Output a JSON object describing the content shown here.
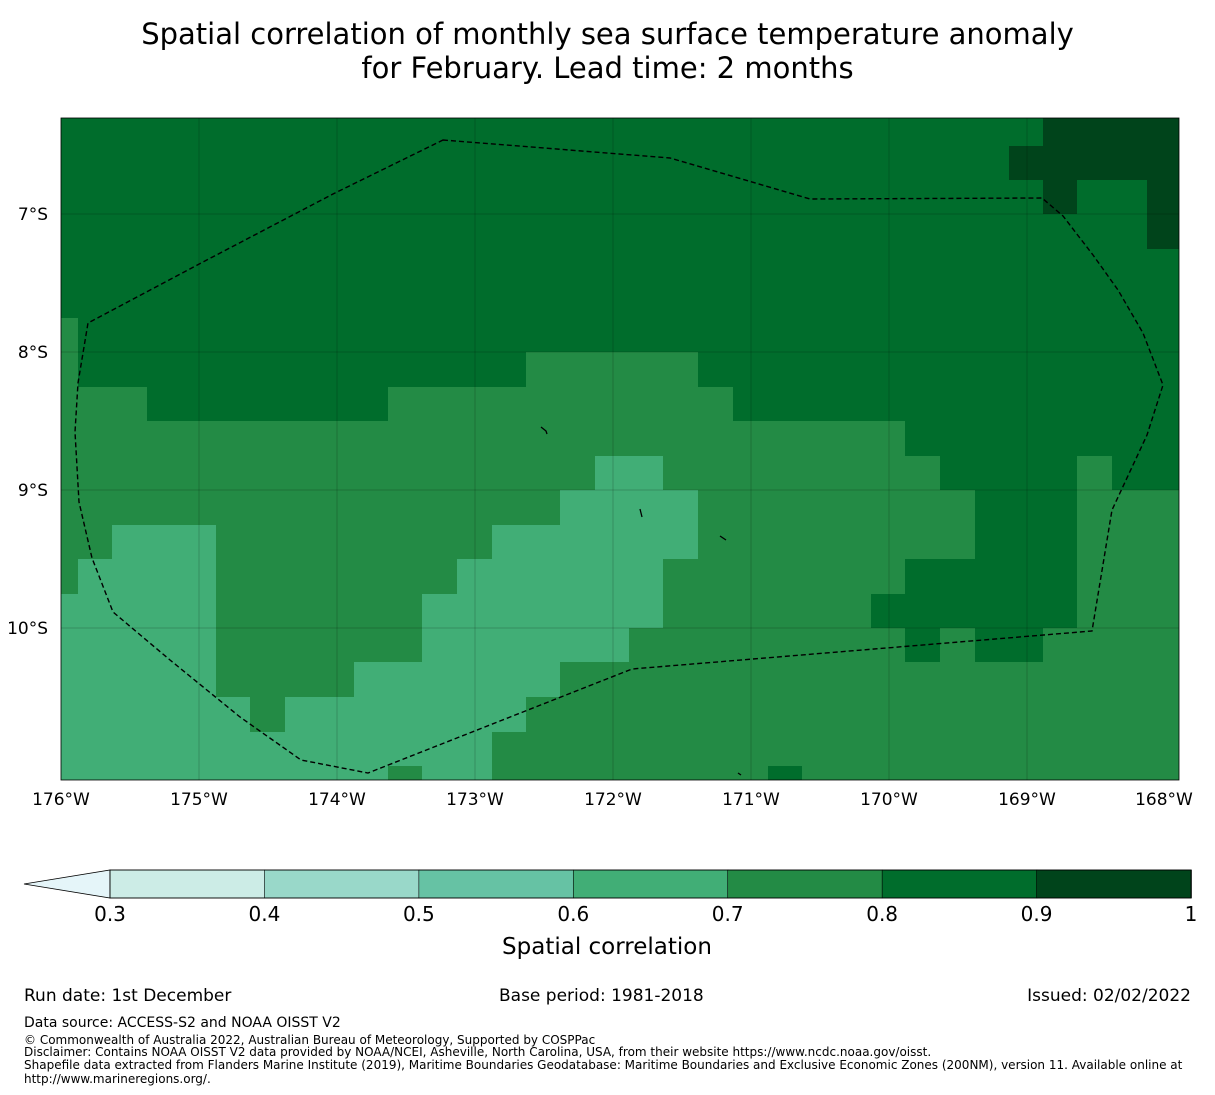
{
  "title": {
    "line1": "Spatial correlation of monthly sea surface temperature anomaly",
    "line2": "for February. Lead time: 2 months"
  },
  "map": {
    "lon_labels": [
      "176°W",
      "175°W",
      "174°W",
      "173°W",
      "172°W",
      "171°W",
      "170°W",
      "169°W",
      "168°W"
    ],
    "lat_labels": [
      "7°S",
      "8°S",
      "9°S",
      "10°S"
    ],
    "lon_range": [
      -176,
      -167.9
    ],
    "lat_range": [
      -6.3,
      -11.1
    ],
    "grid_lines": true,
    "eez_boundary_style": "dashed"
  },
  "colorbar": {
    "label": "Spatial correlation",
    "ticks": [
      "0.3",
      "0.4",
      "0.5",
      "0.6",
      "0.7",
      "0.8",
      "0.9",
      "1"
    ],
    "bins": [
      0.3,
      0.4,
      0.5,
      0.6,
      0.7,
      0.8,
      0.9,
      1.0
    ],
    "colors": [
      "#ccece6",
      "#99d8c9",
      "#66c2a4",
      "#41ae76",
      "#238b45",
      "#006d2c",
      "#00441b"
    ],
    "under_color": "#e5f5f9",
    "extend": "min"
  },
  "footer": {
    "run_date": "Run date: 1st December",
    "base_period": "Base period: 1981-2018",
    "issued": "Issued: 02/02/2022",
    "data_source": "Data source: ACCESS-S2 and NOAA OISST V2",
    "copyright": "© Commonwealth of Australia 2022, Australian Bureau of Meteorology, Supported by COSPPac",
    "disclaimer": "Disclaimer: Contains NOAA OISST V2 data provided by NOAA/NCEI, Asheville, North Carolina, USA, from their website https://www.ncdc.noaa.gov/oisst.",
    "shapefile_line1": "Shapefile data extracted from Flanders Marine Institute (2019), Maritime Boundaries Geodatabase: Maritime Boundaries and Exclusive Economic Zones (200NM), version 11. Available online at",
    "shapefile_line2": "http://www.marineregions.org/."
  }
}
